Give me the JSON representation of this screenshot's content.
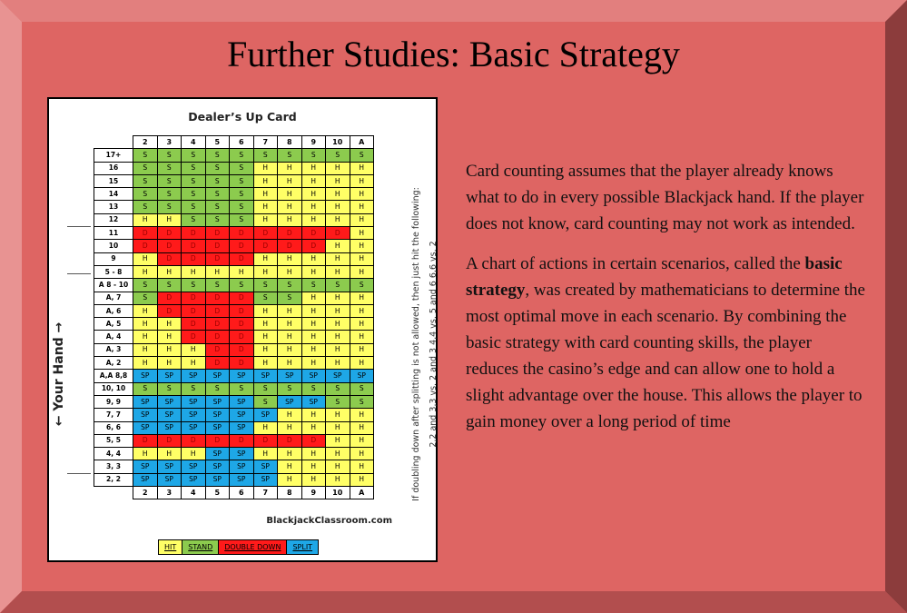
{
  "title": "Further Studies: Basic Strategy",
  "chart": {
    "title": "Dealer’s Up Card",
    "y_label": "← Your Hand →",
    "headers": [
      "2",
      "3",
      "4",
      "5",
      "6",
      "7",
      "8",
      "9",
      "10",
      "A"
    ],
    "rows": [
      {
        "label": "17+",
        "cells": [
          "S",
          "S",
          "S",
          "S",
          "S",
          "S",
          "S",
          "S",
          "S",
          "S"
        ]
      },
      {
        "label": "16",
        "cells": [
          "S",
          "S",
          "S",
          "S",
          "S",
          "H",
          "H",
          "H",
          "H",
          "H"
        ]
      },
      {
        "label": "15",
        "cells": [
          "S",
          "S",
          "S",
          "S",
          "S",
          "H",
          "H",
          "H",
          "H",
          "H"
        ]
      },
      {
        "label": "14",
        "cells": [
          "S",
          "S",
          "S",
          "S",
          "S",
          "H",
          "H",
          "H",
          "H",
          "H"
        ]
      },
      {
        "label": "13",
        "cells": [
          "S",
          "S",
          "S",
          "S",
          "S",
          "H",
          "H",
          "H",
          "H",
          "H"
        ]
      },
      {
        "label": "12",
        "cells": [
          "H",
          "H",
          "S",
          "S",
          "S",
          "H",
          "H",
          "H",
          "H",
          "H"
        ]
      },
      {
        "label": "11",
        "cells": [
          "D",
          "D",
          "D",
          "D",
          "D",
          "D",
          "D",
          "D",
          "D",
          "H"
        ]
      },
      {
        "label": "10",
        "cells": [
          "D",
          "D",
          "D",
          "D",
          "D",
          "D",
          "D",
          "D",
          "H",
          "H"
        ]
      },
      {
        "label": "9",
        "cells": [
          "H",
          "D",
          "D",
          "D",
          "D",
          "H",
          "H",
          "H",
          "H",
          "H"
        ]
      },
      {
        "label": "5 - 8",
        "cells": [
          "H",
          "H",
          "H",
          "H",
          "H",
          "H",
          "H",
          "H",
          "H",
          "H"
        ]
      },
      {
        "label": "A 8 - 10",
        "cells": [
          "S",
          "S",
          "S",
          "S",
          "S",
          "S",
          "S",
          "S",
          "S",
          "S"
        ]
      },
      {
        "label": "A, 7",
        "cells": [
          "S",
          "D",
          "D",
          "D",
          "D",
          "S",
          "S",
          "H",
          "H",
          "H"
        ]
      },
      {
        "label": "A, 6",
        "cells": [
          "H",
          "D",
          "D",
          "D",
          "D",
          "H",
          "H",
          "H",
          "H",
          "H"
        ]
      },
      {
        "label": "A, 5",
        "cells": [
          "H",
          "H",
          "D",
          "D",
          "D",
          "H",
          "H",
          "H",
          "H",
          "H"
        ]
      },
      {
        "label": "A, 4",
        "cells": [
          "H",
          "H",
          "D",
          "D",
          "D",
          "H",
          "H",
          "H",
          "H",
          "H"
        ]
      },
      {
        "label": "A, 3",
        "cells": [
          "H",
          "H",
          "H",
          "D",
          "D",
          "H",
          "H",
          "H",
          "H",
          "H"
        ]
      },
      {
        "label": "A, 2",
        "cells": [
          "H",
          "H",
          "H",
          "D",
          "D",
          "H",
          "H",
          "H",
          "H",
          "H"
        ]
      },
      {
        "label": "A,A 8,8",
        "cells": [
          "SP",
          "SP",
          "SP",
          "SP",
          "SP",
          "SP",
          "SP",
          "SP",
          "SP",
          "SP"
        ]
      },
      {
        "label": "10, 10",
        "cells": [
          "S",
          "S",
          "S",
          "S",
          "S",
          "S",
          "S",
          "S",
          "S",
          "S"
        ]
      },
      {
        "label": "9, 9",
        "cells": [
          "SP",
          "SP",
          "SP",
          "SP",
          "SP",
          "S",
          "SP",
          "SP",
          "S",
          "S"
        ]
      },
      {
        "label": "7, 7",
        "cells": [
          "SP",
          "SP",
          "SP",
          "SP",
          "SP",
          "SP",
          "H",
          "H",
          "H",
          "H"
        ]
      },
      {
        "label": "6, 6",
        "cells": [
          "SP",
          "SP",
          "SP",
          "SP",
          "SP",
          "H",
          "H",
          "H",
          "H",
          "H"
        ]
      },
      {
        "label": "5, 5",
        "cells": [
          "D",
          "D",
          "D",
          "D",
          "D",
          "D",
          "D",
          "D",
          "H",
          "H"
        ]
      },
      {
        "label": "4, 4",
        "cells": [
          "H",
          "H",
          "H",
          "SP",
          "SP",
          "H",
          "H",
          "H",
          "H",
          "H"
        ]
      },
      {
        "label": "3, 3",
        "cells": [
          "SP",
          "SP",
          "SP",
          "SP",
          "SP",
          "SP",
          "H",
          "H",
          "H",
          "H"
        ]
      },
      {
        "label": "2, 2",
        "cells": [
          "SP",
          "SP",
          "SP",
          "SP",
          "SP",
          "SP",
          "H",
          "H",
          "H",
          "H"
        ]
      }
    ],
    "side_note_line1": "If doubling down after splitting is not allowed, then just hit the following:",
    "side_note_line2": "2,2 and 3,3 vs. 2 and 3    4,4 vs. 5 and 6    6,6 vs. 2",
    "source": "BlackjackClassroom.com",
    "legend": [
      "HIT",
      "STAND",
      "DOUBLE DOWN",
      "SPLIT"
    ],
    "colors": {
      "H": "#ffff66",
      "S": "#8ccb4e",
      "D": "#ff1a1a",
      "SP": "#1ea7e6"
    }
  },
  "paragraph1": "Card counting assumes that the player already knows what to do in every possible Blackjack hand. If the player does not know, card counting may not work as intended.",
  "paragraph2_pre": "A chart of actions in certain scenarios, called the ",
  "paragraph2_bold": "basic strategy",
  "paragraph2_post": ", was created by mathematicians to determine the most optimal move in each scenario. By combining the basic strategy with card counting skills, the player reduces the casino’s edge and can allow one to hold a slight advantage over the house. This allows the player to gain money over a long period of time"
}
